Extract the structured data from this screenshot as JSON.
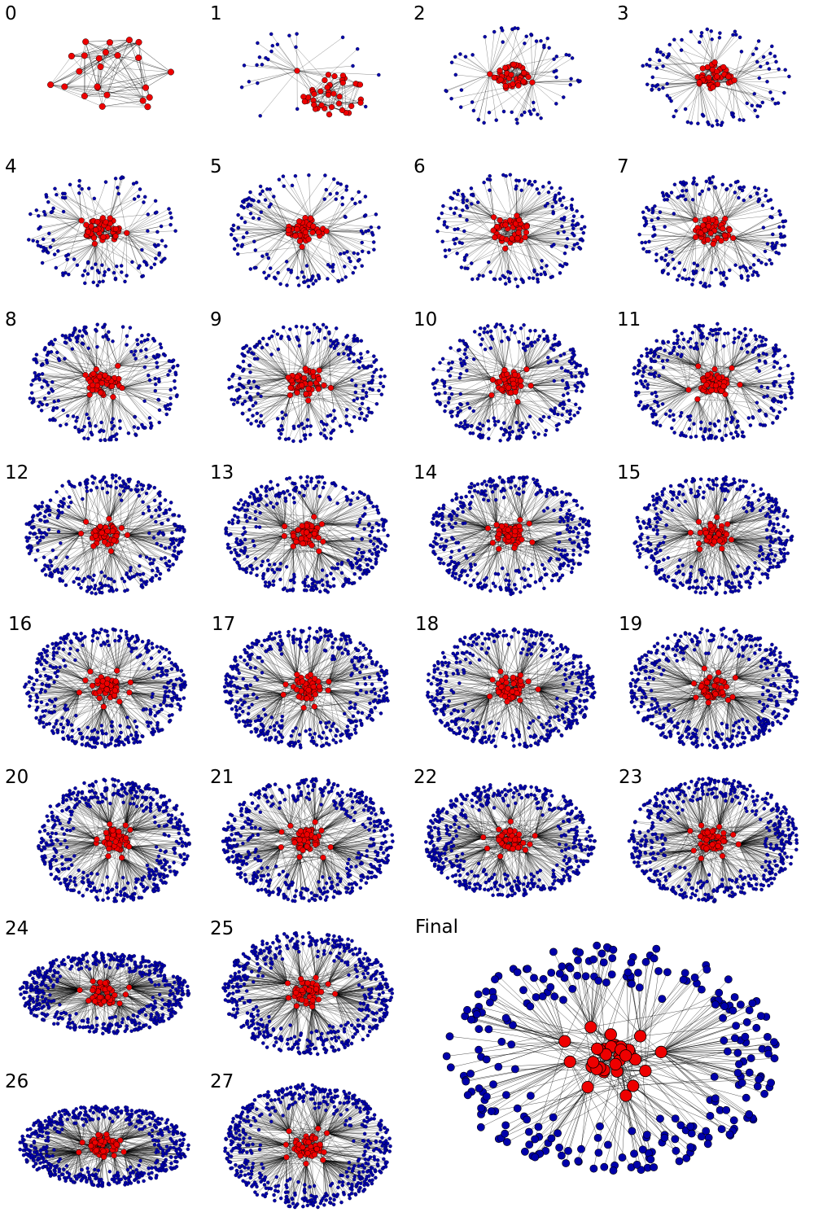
{
  "colors": {
    "core_node": "#ee0000",
    "periphery_node": "#0000aa",
    "edge": "#000000",
    "node_outline": "#000000"
  },
  "panels": [
    {
      "label": "0",
      "core_nodes": 24,
      "periphery_nodes": 0,
      "hubs": 0
    },
    {
      "label": "1",
      "core_nodes": 40,
      "periphery_nodes": 24,
      "hubs": 1
    },
    {
      "label": "2",
      "core_nodes": 44,
      "periphery_nodes": 64,
      "hubs": 2
    },
    {
      "label": "3",
      "core_nodes": 44,
      "periphery_nodes": 96,
      "hubs": 3
    },
    {
      "label": "4",
      "core_nodes": 44,
      "periphery_nodes": 130,
      "hubs": 4
    },
    {
      "label": "5",
      "core_nodes": 44,
      "periphery_nodes": 150,
      "hubs": 4
    },
    {
      "label": "6",
      "core_nodes": 44,
      "periphery_nodes": 170,
      "hubs": 5
    },
    {
      "label": "7",
      "core_nodes": 44,
      "periphery_nodes": 190,
      "hubs": 5
    },
    {
      "label": "8",
      "core_nodes": 44,
      "periphery_nodes": 230,
      "hubs": 6
    },
    {
      "label": "9",
      "core_nodes": 44,
      "periphery_nodes": 250,
      "hubs": 6
    },
    {
      "label": "10",
      "core_nodes": 44,
      "periphery_nodes": 270,
      "hubs": 6
    },
    {
      "label": "11",
      "core_nodes": 44,
      "periphery_nodes": 300,
      "hubs": 7
    },
    {
      "label": "12",
      "core_nodes": 44,
      "periphery_nodes": 330,
      "hubs": 7
    },
    {
      "label": "13",
      "core_nodes": 44,
      "periphery_nodes": 350,
      "hubs": 7
    },
    {
      "label": "14",
      "core_nodes": 44,
      "periphery_nodes": 370,
      "hubs": 8
    },
    {
      "label": "15",
      "core_nodes": 44,
      "periphery_nodes": 380,
      "hubs": 8
    },
    {
      "label": "16",
      "core_nodes": 44,
      "periphery_nodes": 400,
      "hubs": 8
    },
    {
      "label": "17",
      "core_nodes": 44,
      "periphery_nodes": 410,
      "hubs": 8
    },
    {
      "label": "18",
      "core_nodes": 44,
      "periphery_nodes": 420,
      "hubs": 8
    },
    {
      "label": "19",
      "core_nodes": 44,
      "periphery_nodes": 440,
      "hubs": 8
    },
    {
      "label": "20",
      "core_nodes": 44,
      "periphery_nodes": 460,
      "hubs": 8
    },
    {
      "label": "21",
      "core_nodes": 44,
      "periphery_nodes": 470,
      "hubs": 8
    },
    {
      "label": "22",
      "core_nodes": 44,
      "periphery_nodes": 480,
      "hubs": 8
    },
    {
      "label": "23",
      "core_nodes": 44,
      "periphery_nodes": 490,
      "hubs": 8
    },
    {
      "label": "24",
      "core_nodes": 44,
      "periphery_nodes": 500,
      "hubs": 8
    },
    {
      "label": "25",
      "core_nodes": 44,
      "periphery_nodes": 510,
      "hubs": 8
    },
    {
      "label": "26",
      "core_nodes": 44,
      "periphery_nodes": 520,
      "hubs": 8
    },
    {
      "label": "27",
      "core_nodes": 44,
      "periphery_nodes": 530,
      "hubs": 8
    },
    {
      "label": "Final",
      "core_nodes": 24,
      "periphery_nodes": 260,
      "hubs": 10
    }
  ]
}
